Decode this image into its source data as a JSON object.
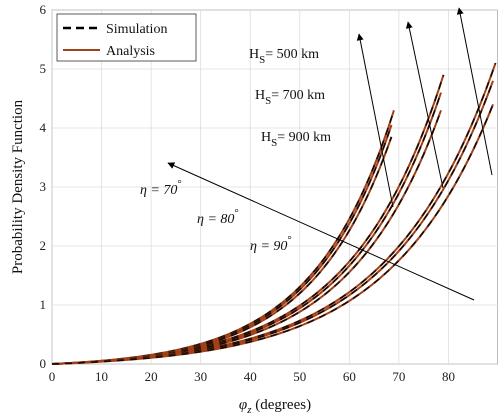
{
  "chart_data": {
    "type": "line",
    "xlabel": "φz (degrees)",
    "ylabel": "Probability Density Function",
    "xlim": [
      0,
      90
    ],
    "ylim": [
      0,
      6
    ],
    "xticks": [
      "0",
      "10",
      "20",
      "30",
      "40",
      "50",
      "60",
      "70",
      "80"
    ],
    "yticks": [
      "0",
      "1",
      "2",
      "3",
      "4",
      "5",
      "6"
    ],
    "grid": true,
    "legend": {
      "placement": "top-left",
      "entries": [
        {
          "label": "Simulation",
          "style": "dashed",
          "color": "#000000"
        },
        {
          "label": "Analysis",
          "style": "solid",
          "color": "#a0411a"
        }
      ]
    },
    "annotations": {
      "hs": [
        "H",
        "S",
        "= 500 km",
        "= 700 km",
        "= 900 km"
      ],
      "eta": [
        "η = 70",
        "η = 80",
        "η = 90",
        "°"
      ]
    },
    "colors": {
      "analysis": "#a0411a",
      "simulation": "#000000",
      "arrow": "#000000"
    },
    "groups": [
      {
        "hs": "500 km",
        "curves": [
          {
            "eta": "70°",
            "x_end": 69.0,
            "y_end": 4.3
          },
          {
            "eta": "80°",
            "x_end": 68.5,
            "y_end": 4.05
          },
          {
            "eta": "90°",
            "x_end": 68.5,
            "y_end": 3.85
          }
        ]
      },
      {
        "hs": "700 km",
        "curves": [
          {
            "eta": "70°",
            "x_end": 79.0,
            "y_end": 4.9
          },
          {
            "eta": "80°",
            "x_end": 78.5,
            "y_end": 4.6
          },
          {
            "eta": "90°",
            "x_end": 78.5,
            "y_end": 4.3
          }
        ]
      },
      {
        "hs": "900 km",
        "curves": [
          {
            "eta": "70°",
            "x_end": 89.5,
            "y_end": 5.1
          },
          {
            "eta": "80°",
            "x_end": 89.0,
            "y_end": 4.8
          },
          {
            "eta": "90°",
            "x_end": 89.0,
            "y_end": 4.4
          }
        ]
      }
    ]
  }
}
